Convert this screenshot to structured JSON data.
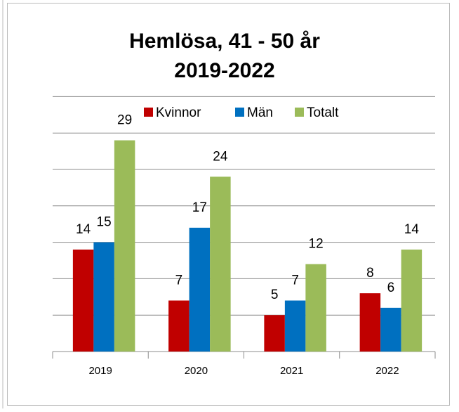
{
  "chart_data": {
    "type": "bar",
    "title": [
      "Hemlösa, 41 - 50 år",
      "2019-2022"
    ],
    "categories": [
      "2019",
      "2020",
      "2021",
      "2022"
    ],
    "series": [
      {
        "name": "Kvinnor",
        "color": "#c00000",
        "values": [
          14,
          7,
          5,
          8
        ]
      },
      {
        "name": "Män",
        "color": "#0070c0",
        "values": [
          15,
          17,
          7,
          6
        ]
      },
      {
        "name": "Totalt",
        "color": "#9bbb59",
        "values": [
          29,
          24,
          12,
          14
        ]
      }
    ],
    "ylim": [
      0,
      35
    ],
    "yticks": [
      0,
      5,
      10,
      15,
      20,
      25,
      30,
      35
    ],
    "grid": true,
    "legend": "top"
  }
}
